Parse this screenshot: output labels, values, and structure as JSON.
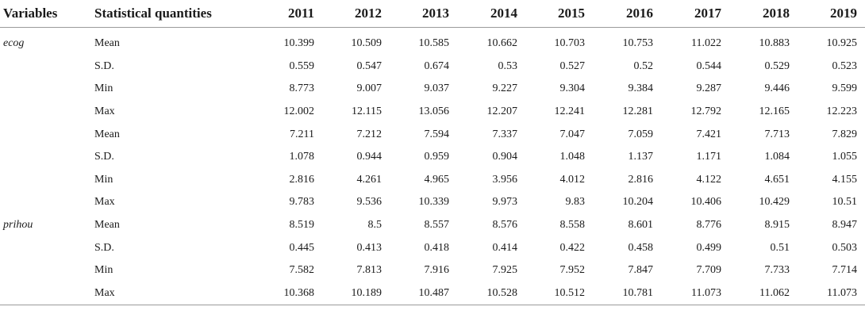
{
  "headers": {
    "variables": "Variables",
    "statistic": "Statistical quantities",
    "years": [
      "2011",
      "2012",
      "2013",
      "2014",
      "2015",
      "2016",
      "2017",
      "2018",
      "2019"
    ]
  },
  "rows": [
    {
      "variable": "ecog",
      "stat": "Mean",
      "values": [
        "10.399",
        "10.509",
        "10.585",
        "10.662",
        "10.703",
        "10.753",
        "11.022",
        "10.883",
        "10.925"
      ]
    },
    {
      "variable": "",
      "stat": "S.D.",
      "values": [
        "0.559",
        "0.547",
        "0.674",
        "0.53",
        "0.527",
        "0.52",
        "0.544",
        "0.529",
        "0.523"
      ]
    },
    {
      "variable": "",
      "stat": "Min",
      "values": [
        "8.773",
        "9.007",
        "9.037",
        "9.227",
        "9.304",
        "9.384",
        "9.287",
        "9.446",
        "9.599"
      ]
    },
    {
      "variable": "",
      "stat": "Max",
      "values": [
        "12.002",
        "12.115",
        "13.056",
        "12.207",
        "12.241",
        "12.281",
        "12.792",
        "12.165",
        "12.223"
      ]
    },
    {
      "variable": "",
      "stat": "Mean",
      "values": [
        "7.211",
        "7.212",
        "7.594",
        "7.337",
        "7.047",
        "7.059",
        "7.421",
        "7.713",
        "7.829"
      ]
    },
    {
      "variable": "",
      "stat": "S.D.",
      "values": [
        "1.078",
        "0.944",
        "0.959",
        "0.904",
        "1.048",
        "1.137",
        "1.171",
        "1.084",
        "1.055"
      ]
    },
    {
      "variable": "",
      "stat": "Min",
      "values": [
        "2.816",
        "4.261",
        "4.965",
        "3.956",
        "4.012",
        "2.816",
        "4.122",
        "4.651",
        "4.155"
      ]
    },
    {
      "variable": "",
      "stat": "Max",
      "values": [
        "9.783",
        "9.536",
        "10.339",
        "9.973",
        "9.83",
        "10.204",
        "10.406",
        "10.429",
        "10.51"
      ]
    },
    {
      "variable": "prihou",
      "stat": "Mean",
      "values": [
        "8.519",
        "8.5",
        "8.557",
        "8.576",
        "8.558",
        "8.601",
        "8.776",
        "8.915",
        "8.947"
      ]
    },
    {
      "variable": "",
      "stat": "S.D.",
      "values": [
        "0.445",
        "0.413",
        "0.418",
        "0.414",
        "0.422",
        "0.458",
        "0.499",
        "0.51",
        "0.503"
      ]
    },
    {
      "variable": "",
      "stat": "Min",
      "values": [
        "7.582",
        "7.813",
        "7.916",
        "7.925",
        "7.952",
        "7.847",
        "7.709",
        "7.733",
        "7.714"
      ]
    },
    {
      "variable": "",
      "stat": "Max",
      "values": [
        "10.368",
        "10.189",
        "10.487",
        "10.528",
        "10.512",
        "10.781",
        "11.073",
        "11.062",
        "11.073"
      ]
    }
  ]
}
